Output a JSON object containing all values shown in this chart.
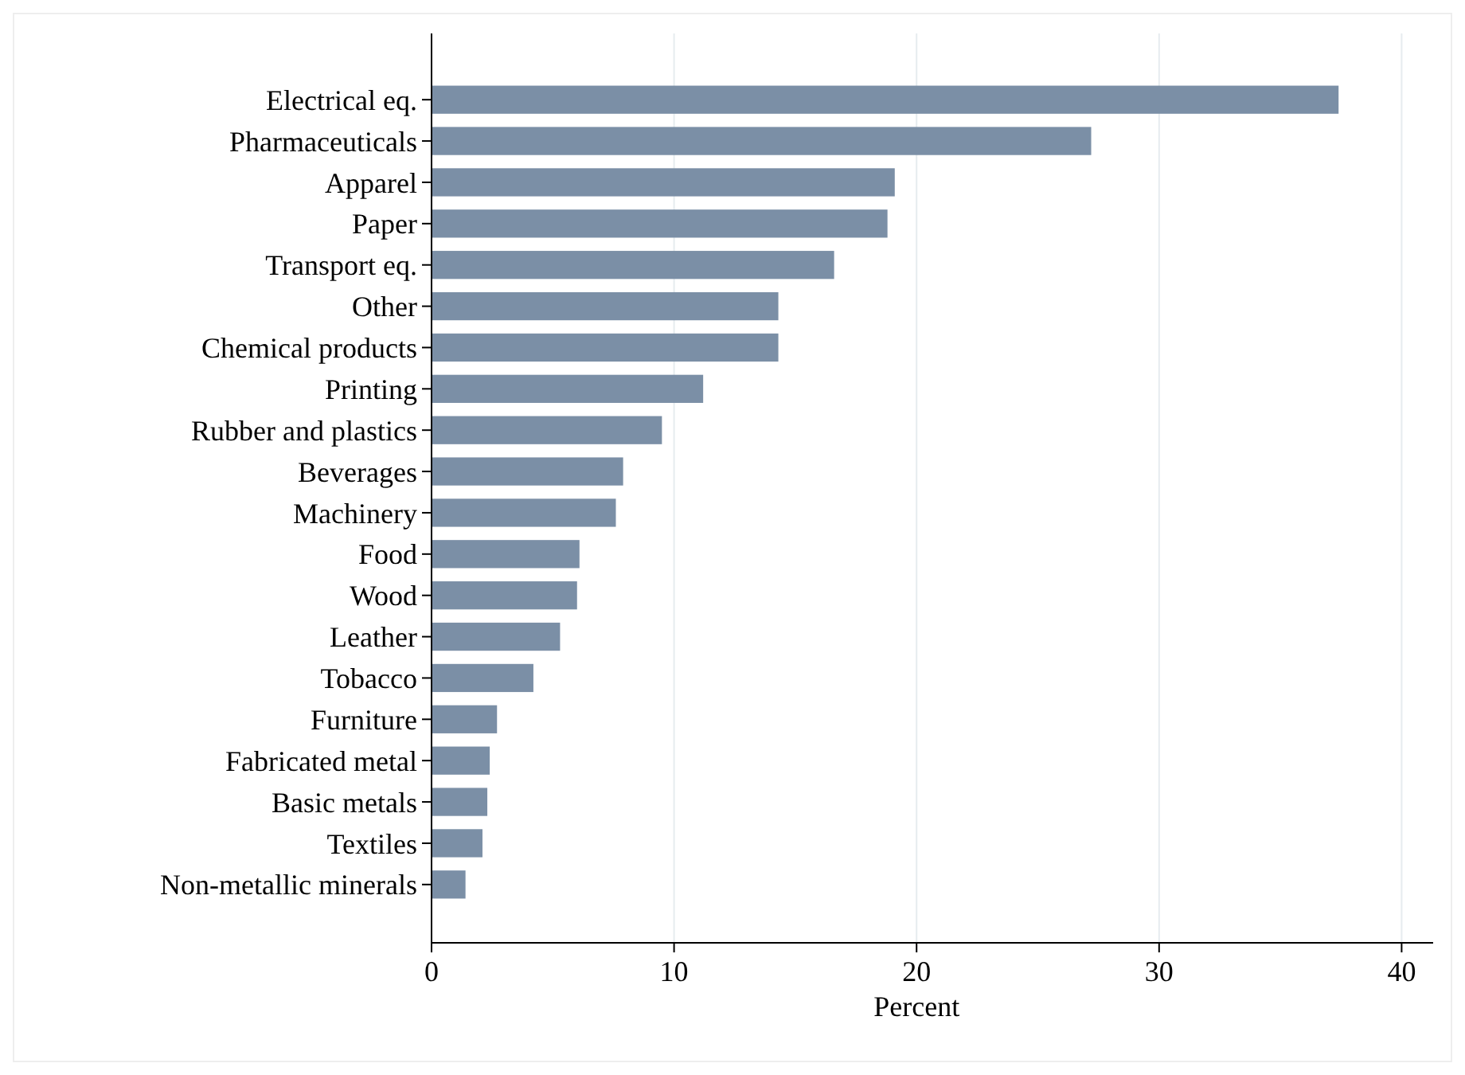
{
  "chart_data": {
    "type": "bar",
    "orientation": "horizontal",
    "xlabel": "Percent",
    "categories": [
      "Electrical eq.",
      "Pharmaceuticals",
      "Apparel",
      "Paper",
      "Transport eq.",
      "Other",
      "Chemical products",
      "Printing",
      "Rubber and plastics",
      "Beverages",
      "Machinery",
      "Food",
      "Wood",
      "Leather",
      "Tobacco",
      "Furniture",
      "Fabricated metal",
      "Basic metals",
      "Textiles",
      "Non-metallic minerals"
    ],
    "values": [
      37.4,
      27.2,
      19.1,
      18.8,
      16.6,
      14.3,
      14.3,
      11.2,
      9.5,
      7.9,
      7.6,
      6.1,
      6.0,
      5.3,
      4.2,
      2.7,
      2.4,
      2.3,
      2.1,
      1.4
    ],
    "color": "#7b8fa6",
    "xlim": [
      0,
      41.3
    ],
    "xticks": [
      0,
      10,
      20,
      30,
      40
    ],
    "grid": "x"
  }
}
